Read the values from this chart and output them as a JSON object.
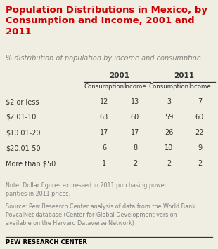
{
  "title": "Population Distributions in Mexico, by\nConsumption and Income, 2001 and\n2011",
  "subtitle": "% distribution of population by income and consumption",
  "col_groups": [
    "2001",
    "2011"
  ],
  "col_headers": [
    "Consumption",
    "Income",
    "Consumption",
    "Income"
  ],
  "row_labels": [
    "$2 or less",
    "$2.01-10",
    "$10.01-20",
    "$20.01-50",
    "More than $50"
  ],
  "data": [
    [
      12,
      13,
      3,
      7
    ],
    [
      63,
      60,
      59,
      60
    ],
    [
      17,
      17,
      26,
      22
    ],
    [
      6,
      8,
      10,
      9
    ],
    [
      1,
      2,
      2,
      2
    ]
  ],
  "note": "Note: Dollar figures expressed in 2011 purchasing power\nparities in 2011 prices.",
  "source": "Source: Pew Research Center analysis of data from the World Bank\nPovcalNet database (Center for Global Development version\navailable on the Harvard Dataverse Network)",
  "footer": "PEW RESEARCH CENTER",
  "title_color": "#cc0000",
  "subtitle_color": "#808080",
  "header_color": "#333333",
  "data_color": "#333333",
  "note_color": "#808080",
  "footer_color": "#000000",
  "bg_color": "#f0ede3",
  "line_color": "#333333"
}
